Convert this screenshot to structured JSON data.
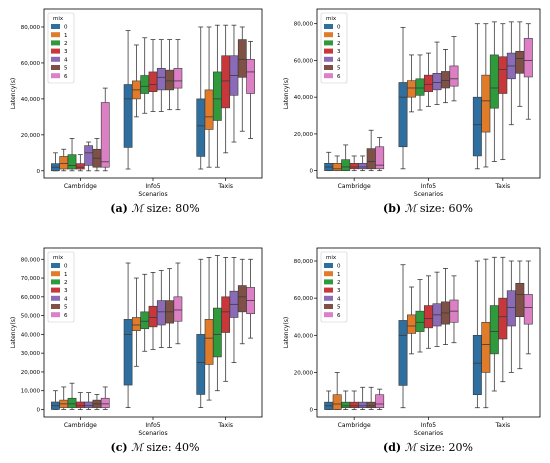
{
  "colors": [
    "#2f6f9f",
    "#e07b2a",
    "#2e9a3c",
    "#c8373a",
    "#8b6bb8",
    "#7f5146",
    "#dc7fc4"
  ],
  "legend_title": "mix",
  "legend_items": [
    "0",
    "1",
    "2",
    "3",
    "4",
    "5",
    "6"
  ],
  "chart_data": [
    {
      "type": "box",
      "caption": {
        "label": "(a)",
        "symbol": "ℳ",
        "text": "size: 80%"
      },
      "xlabel": "Scenarios",
      "ylabel": "Latency(s)",
      "categories": [
        "Cambridge",
        "Info5",
        "Taxis"
      ],
      "ylim": [
        -4000,
        90000
      ],
      "yticks": [
        0,
        20000,
        40000,
        60000,
        80000
      ],
      "ytick_labels": [
        "0",
        "20,000",
        "40,000",
        "60,000",
        "80,000"
      ],
      "legend_position": "top-left",
      "series": [
        {
          "name": "0",
          "boxes": [
            [
              0,
              0,
              2000,
              4000,
              10000
            ],
            [
              1000,
              13000,
              40000,
              48000,
              78000
            ],
            [
              1000,
              8000,
              25000,
              40000,
              80000
            ]
          ]
        },
        {
          "name": "1",
          "boxes": [
            [
              0,
              1000,
              4000,
              8000,
              12000
            ],
            [
              30000,
              40000,
              45000,
              50000,
              70000
            ],
            [
              2000,
              23000,
              30000,
              45000,
              80000
            ]
          ]
        },
        {
          "name": "2",
          "boxes": [
            [
              0,
              1000,
              3000,
              9000,
              18000
            ],
            [
              32000,
              43000,
              47000,
              53000,
              74000
            ],
            [
              2000,
              28000,
              40000,
              55000,
              81000
            ]
          ]
        },
        {
          "name": "3",
          "boxes": [
            [
              0,
              1000,
              2000,
              4000,
              9000
            ],
            [
              33000,
              44000,
              48000,
              55000,
              73000
            ],
            [
              10000,
              35000,
              50000,
              64000,
              81000
            ]
          ]
        },
        {
          "name": "4",
          "boxes": [
            [
              0,
              3000,
              10000,
              14000,
              16000
            ],
            [
              33000,
              45000,
              52000,
              57000,
              73000
            ],
            [
              16000,
              42000,
              53000,
              64000,
              81000
            ]
          ]
        },
        {
          "name": "5",
          "boxes": [
            [
              0,
              2000,
              7000,
              12000,
              18000
            ],
            [
              34000,
              45000,
              50000,
              56000,
              73000
            ],
            [
              22000,
              52000,
              62000,
              73000,
              80000
            ]
          ]
        },
        {
          "name": "6",
          "boxes": [
            [
              0,
              2000,
              5000,
              38000,
              46000
            ],
            [
              34000,
              46000,
              50000,
              57000,
              73000
            ],
            [
              18000,
              43000,
              55000,
              62000,
              72000
            ]
          ]
        }
      ]
    },
    {
      "type": "box",
      "caption": {
        "label": "(b)",
        "symbol": "ℳ",
        "text": "size: 60%"
      },
      "xlabel": "Scenarios",
      "ylabel": "Latency(s)",
      "categories": [
        "Cambridge",
        "Info5",
        "Taxis"
      ],
      "ylim": [
        -4000,
        88000
      ],
      "yticks": [
        0,
        20000,
        40000,
        60000,
        80000
      ],
      "ytick_labels": [
        "0",
        "20,000",
        "40,000",
        "60,000",
        "80,000"
      ],
      "legend_position": "top-left",
      "series": [
        {
          "name": "0",
          "boxes": [
            [
              0,
              0,
              2000,
              4000,
              10000
            ],
            [
              1000,
              13000,
              40000,
              48000,
              78000
            ],
            [
              1000,
              8000,
              25000,
              40000,
              80000
            ]
          ]
        },
        {
          "name": "1",
          "boxes": [
            [
              0,
              0,
              1000,
              4000,
              8000
            ],
            [
              32000,
              40000,
              45000,
              49000,
              63000
            ],
            [
              2000,
              21000,
              38000,
              52000,
              80000
            ]
          ]
        },
        {
          "name": "2",
          "boxes": [
            [
              0,
              0,
              2000,
              6000,
              14000
            ],
            [
              33000,
              41000,
              45000,
              50000,
              63000
            ],
            [
              5000,
              34000,
              45000,
              63000,
              81000
            ]
          ]
        },
        {
          "name": "3",
          "boxes": [
            [
              0,
              1000,
              2000,
              4000,
              8000
            ],
            [
              35000,
              43000,
              47000,
              52000,
              64000
            ],
            [
              6000,
              42000,
              55000,
              62000,
              80000
            ]
          ]
        },
        {
          "name": "4",
          "boxes": [
            [
              0,
              1000,
              2000,
              4000,
              8000
            ],
            [
              36000,
              44000,
              48000,
              53000,
              70000
            ],
            [
              25000,
              50000,
              57000,
              64000,
              81000
            ]
          ]
        },
        {
          "name": "5",
          "boxes": [
            [
              0,
              1000,
              5000,
              12000,
              22000
            ],
            [
              37000,
              45000,
              49000,
              54000,
              66000
            ],
            [
              35000,
              53000,
              61000,
              65000,
              81000
            ]
          ]
        },
        {
          "name": "6",
          "boxes": [
            [
              0,
              1000,
              3000,
              13000,
              18000
            ],
            [
              38000,
              46000,
              50000,
              57000,
              73000
            ],
            [
              28000,
              51000,
              60000,
              72000,
              80000
            ]
          ]
        }
      ]
    },
    {
      "type": "box",
      "caption": {
        "label": "(c)",
        "symbol": "ℳ",
        "text": "size: 40%"
      },
      "xlabel": "Scenarios",
      "ylabel": "Latency(s)",
      "categories": [
        "Cambridge",
        "Info5",
        "Taxis"
      ],
      "ylim": [
        -4000,
        86000
      ],
      "yticks": [
        0,
        10000,
        20000,
        30000,
        40000,
        50000,
        60000,
        70000,
        80000
      ],
      "ytick_labels": [
        "0",
        "10,000",
        "20,000",
        "30,000",
        "40,000",
        "50,000",
        "60,000",
        "70,000",
        "80,000"
      ],
      "legend_position": "top-left",
      "series": [
        {
          "name": "0",
          "boxes": [
            [
              0,
              0,
              2000,
              4000,
              10000
            ],
            [
              1000,
              13000,
              40000,
              48000,
              78000
            ],
            [
              1000,
              8000,
              25000,
              40000,
              80000
            ]
          ]
        },
        {
          "name": "1",
          "boxes": [
            [
              0,
              1000,
              3000,
              5000,
              12000
            ],
            [
              23000,
              42000,
              45000,
              49000,
              70000
            ],
            [
              5000,
              24000,
              38000,
              48000,
              81000
            ]
          ]
        },
        {
          "name": "2",
          "boxes": [
            [
              0,
              1000,
              3000,
              6000,
              14000
            ],
            [
              31000,
              43000,
              47000,
              52000,
              72000
            ],
            [
              10000,
              28000,
              40000,
              54000,
              82000
            ]
          ]
        },
        {
          "name": "3",
          "boxes": [
            [
              0,
              1000,
              2000,
              4000,
              9000
            ],
            [
              32000,
              44000,
              49000,
              55000,
              73000
            ],
            [
              15000,
              41000,
              52000,
              60000,
              81000
            ]
          ]
        },
        {
          "name": "4",
          "boxes": [
            [
              0,
              1000,
              2000,
              4000,
              9000
            ],
            [
              33000,
              45000,
              52000,
              58000,
              74000
            ],
            [
              25000,
              49000,
              56000,
              63000,
              81000
            ]
          ]
        },
        {
          "name": "5",
          "boxes": [
            [
              0,
              1000,
              3000,
              5000,
              8000
            ],
            [
              33000,
              46000,
              52000,
              58000,
              75000
            ],
            [
              35000,
              52000,
              60000,
              66000,
              80000
            ]
          ]
        },
        {
          "name": "6",
          "boxes": [
            [
              0,
              1000,
              3000,
              6000,
              12000
            ],
            [
              35000,
              47000,
              53000,
              60000,
              78000
            ],
            [
              38000,
              51000,
              58000,
              65000,
              80000
            ]
          ]
        }
      ]
    },
    {
      "type": "box",
      "caption": {
        "label": "(d)",
        "symbol": "ℳ",
        "text": "size: 20%"
      },
      "xlabel": "Scenarios",
      "ylabel": "Latency(s)",
      "categories": [
        "Cambridge",
        "Info5",
        "Taxis"
      ],
      "ylim": [
        -4000,
        87000
      ],
      "yticks": [
        0,
        20000,
        40000,
        60000,
        80000
      ],
      "ytick_labels": [
        "0",
        "20,000",
        "40,000",
        "60,000",
        "80,000"
      ],
      "legend_position": "top-left",
      "series": [
        {
          "name": "0",
          "boxes": [
            [
              0,
              0,
              2000,
              4000,
              10000
            ],
            [
              1000,
              13000,
              40000,
              48000,
              78000
            ],
            [
              1000,
              8000,
              25000,
              40000,
              80000
            ]
          ]
        },
        {
          "name": "1",
          "boxes": [
            [
              0,
              0,
              3000,
              8000,
              20000
            ],
            [
              30000,
              41000,
              45000,
              51000,
              66000
            ],
            [
              1000,
              20000,
              35000,
              47000,
              81000
            ]
          ]
        },
        {
          "name": "2",
          "boxes": [
            [
              0,
              1000,
              2000,
              4000,
              10000
            ],
            [
              31000,
              42000,
              47000,
              53000,
              70000
            ],
            [
              10000,
              30000,
              42000,
              56000,
              82000
            ]
          ]
        },
        {
          "name": "3",
          "boxes": [
            [
              0,
              1000,
              2000,
              4000,
              10000
            ],
            [
              33000,
              44000,
              49000,
              56000,
              72000
            ],
            [
              15000,
              38000,
              50000,
              60000,
              82000
            ]
          ]
        },
        {
          "name": "4",
          "boxes": [
            [
              0,
              1000,
              2000,
              4000,
              12000
            ],
            [
              34000,
              45000,
              51000,
              57000,
              74000
            ],
            [
              20000,
              45000,
              55000,
              64000,
              80000
            ]
          ]
        },
        {
          "name": "5",
          "boxes": [
            [
              0,
              1000,
              2000,
              4000,
              12000
            ],
            [
              35000,
              46000,
              52000,
              58000,
              76000
            ],
            [
              22000,
              50000,
              62000,
              68000,
              80000
            ]
          ]
        },
        {
          "name": "6",
          "boxes": [
            [
              0,
              1000,
              3000,
              8000,
              11000
            ],
            [
              36000,
              47000,
              53000,
              59000,
              72000
            ],
            [
              30000,
              46000,
              55000,
              62000,
              80000
            ]
          ]
        }
      ]
    }
  ]
}
